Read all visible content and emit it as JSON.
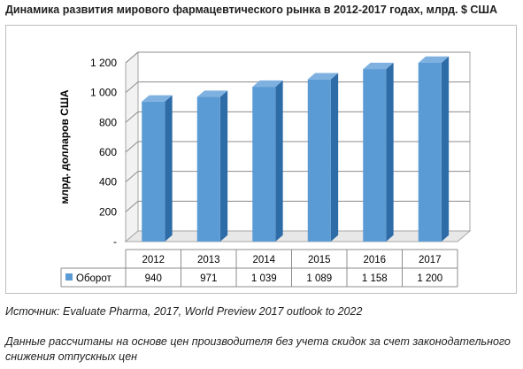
{
  "header": {
    "title": "Динамика развития мирового фармацевтического рынка в 2012-2017 годах, млрд. $ США"
  },
  "footer": {
    "source": "Источник: Evaluate Pharma, 2017, World Preview 2017 outlook to 2022",
    "note": "Данные рассчитаны на основе цен производителя без учета скидок за счет законодательного снижения отпускных цен"
  },
  "chart_data": {
    "type": "bar",
    "categories": [
      "2012",
      "2013",
      "2014",
      "2015",
      "2016",
      "2017"
    ],
    "series": [
      {
        "name": "Оборот",
        "values": [
          940,
          971,
          1039,
          1089,
          1158,
          1200
        ],
        "labels": [
          "940",
          "971",
          "1 039",
          "1 089",
          "1 158",
          "1 200"
        ]
      }
    ],
    "ylabel": "млрд. долларов США",
    "ylim": [
      0,
      1200
    ],
    "yticks": [
      0,
      200,
      400,
      600,
      800,
      1000,
      1200
    ],
    "ytick_labels": [
      "-",
      "200",
      "400",
      "600",
      "800",
      "1 000",
      "1 200"
    ],
    "grid": true,
    "three_d": true,
    "legend_placement": "data-table",
    "colors": {
      "bar_front": "#5b9bd5",
      "bar_side": "#2e6ca8",
      "bar_top": "#7fb1e0",
      "grid": "#8c8c8c",
      "wall": "#ffffff",
      "floor": "#e8e8e8"
    }
  }
}
